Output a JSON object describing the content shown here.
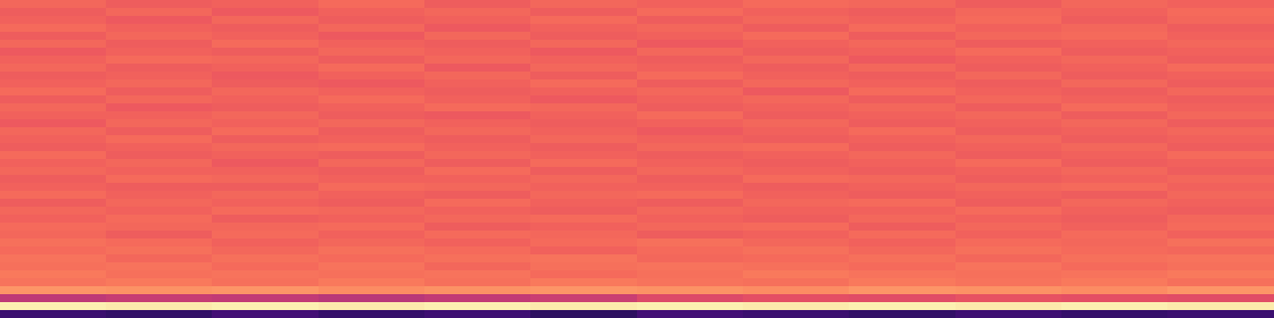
{
  "chart_data": {
    "type": "heatmap",
    "color": "magma",
    "color_range": [
      0,
      1
    ],
    "tick_labels": false,
    "cells": [
      [
        0.68,
        0.66,
        0.67,
        0.69,
        0.66,
        0.68,
        0.67,
        0.69,
        0.68,
        0.66,
        0.68,
        0.67
      ],
      [
        0.66,
        0.68,
        0.65,
        0.67,
        0.68,
        0.66,
        0.69,
        0.67,
        0.66,
        0.68,
        0.67,
        0.69
      ],
      [
        0.67,
        0.65,
        0.68,
        0.66,
        0.67,
        0.69,
        0.66,
        0.68,
        0.67,
        0.69,
        0.66,
        0.68
      ],
      [
        0.69,
        0.67,
        0.66,
        0.68,
        0.65,
        0.67,
        0.68,
        0.66,
        0.69,
        0.67,
        0.68,
        0.66
      ],
      [
        0.66,
        0.68,
        0.67,
        0.65,
        0.68,
        0.66,
        0.67,
        0.69,
        0.66,
        0.68,
        0.69,
        0.67
      ],
      [
        0.68,
        0.66,
        0.69,
        0.67,
        0.66,
        0.68,
        0.65,
        0.67,
        0.68,
        0.66,
        0.67,
        0.68
      ],
      [
        0.65,
        0.67,
        0.66,
        0.68,
        0.67,
        0.65,
        0.68,
        0.66,
        0.67,
        0.69,
        0.66,
        0.67
      ],
      [
        0.67,
        0.69,
        0.68,
        0.66,
        0.68,
        0.67,
        0.66,
        0.68,
        0.65,
        0.67,
        0.68,
        0.66
      ],
      [
        0.68,
        0.66,
        0.67,
        0.69,
        0.65,
        0.68,
        0.67,
        0.66,
        0.68,
        0.66,
        0.67,
        0.69
      ],
      [
        0.66,
        0.67,
        0.65,
        0.67,
        0.68,
        0.66,
        0.69,
        0.67,
        0.66,
        0.68,
        0.66,
        0.67
      ],
      [
        0.67,
        0.68,
        0.66,
        0.65,
        0.67,
        0.69,
        0.66,
        0.68,
        0.67,
        0.66,
        0.68,
        0.66
      ],
      [
        0.69,
        0.66,
        0.68,
        0.67,
        0.66,
        0.67,
        0.68,
        0.65,
        0.69,
        0.67,
        0.66,
        0.68
      ],
      [
        0.66,
        0.68,
        0.67,
        0.69,
        0.67,
        0.65,
        0.67,
        0.68,
        0.66,
        0.68,
        0.67,
        0.66
      ],
      [
        0.68,
        0.65,
        0.66,
        0.67,
        0.69,
        0.68,
        0.66,
        0.67,
        0.68,
        0.66,
        0.69,
        0.67
      ],
      [
        0.67,
        0.67,
        0.68,
        0.66,
        0.65,
        0.67,
        0.69,
        0.66,
        0.67,
        0.68,
        0.66,
        0.68
      ],
      [
        0.65,
        0.68,
        0.67,
        0.68,
        0.67,
        0.66,
        0.67,
        0.68,
        0.66,
        0.67,
        0.68,
        0.66
      ],
      [
        0.68,
        0.66,
        0.69,
        0.66,
        0.68,
        0.67,
        0.65,
        0.67,
        0.69,
        0.66,
        0.67,
        0.68
      ],
      [
        0.67,
        0.69,
        0.66,
        0.67,
        0.66,
        0.68,
        0.67,
        0.66,
        0.67,
        0.68,
        0.66,
        0.67
      ],
      [
        0.66,
        0.67,
        0.68,
        0.69,
        0.67,
        0.66,
        0.68,
        0.69,
        0.66,
        0.67,
        0.68,
        0.66
      ],
      [
        0.69,
        0.66,
        0.67,
        0.66,
        0.68,
        0.67,
        0.66,
        0.67,
        0.68,
        0.66,
        0.67,
        0.69
      ],
      [
        0.67,
        0.68,
        0.65,
        0.68,
        0.66,
        0.69,
        0.67,
        0.66,
        0.67,
        0.69,
        0.66,
        0.67
      ],
      [
        0.68,
        0.67,
        0.67,
        0.66,
        0.69,
        0.66,
        0.68,
        0.67,
        0.66,
        0.67,
        0.68,
        0.66
      ],
      [
        0.66,
        0.69,
        0.68,
        0.67,
        0.67,
        0.68,
        0.66,
        0.69,
        0.68,
        0.66,
        0.67,
        0.68
      ],
      [
        0.67,
        0.66,
        0.66,
        0.69,
        0.68,
        0.67,
        0.67,
        0.66,
        0.67,
        0.68,
        0.69,
        0.67
      ],
      [
        0.69,
        0.67,
        0.68,
        0.67,
        0.66,
        0.68,
        0.69,
        0.67,
        0.66,
        0.67,
        0.66,
        0.68
      ],
      [
        0.66,
        0.68,
        0.67,
        0.66,
        0.69,
        0.67,
        0.66,
        0.68,
        0.69,
        0.66,
        0.68,
        0.67
      ],
      [
        0.68,
        0.67,
        0.69,
        0.68,
        0.67,
        0.66,
        0.68,
        0.67,
        0.67,
        0.69,
        0.67,
        0.66
      ],
      [
        0.67,
        0.69,
        0.66,
        0.67,
        0.68,
        0.69,
        0.67,
        0.66,
        0.68,
        0.67,
        0.66,
        0.68
      ],
      [
        0.69,
        0.68,
        0.68,
        0.69,
        0.66,
        0.67,
        0.68,
        0.69,
        0.66,
        0.68,
        0.67,
        0.69
      ],
      [
        0.68,
        0.66,
        0.69,
        0.67,
        0.69,
        0.68,
        0.66,
        0.67,
        0.69,
        0.67,
        0.69,
        0.67
      ],
      [
        0.7,
        0.69,
        0.67,
        0.68,
        0.67,
        0.69,
        0.7,
        0.68,
        0.67,
        0.69,
        0.68,
        0.7
      ],
      [
        0.69,
        0.7,
        0.68,
        0.7,
        0.69,
        0.67,
        0.69,
        0.7,
        0.68,
        0.7,
        0.69,
        0.68
      ],
      [
        0.71,
        0.68,
        0.7,
        0.69,
        0.7,
        0.71,
        0.68,
        0.69,
        0.7,
        0.68,
        0.7,
        0.71
      ],
      [
        0.7,
        0.71,
        0.69,
        0.71,
        0.68,
        0.7,
        0.71,
        0.7,
        0.69,
        0.71,
        0.69,
        0.7
      ],
      [
        0.72,
        0.7,
        0.71,
        0.7,
        0.71,
        0.69,
        0.7,
        0.72,
        0.71,
        0.7,
        0.71,
        0.72
      ],
      [
        0.71,
        0.72,
        0.7,
        0.72,
        0.7,
        0.72,
        0.71,
        0.7,
        0.72,
        0.71,
        0.72,
        0.7
      ],
      [
        0.78,
        0.77,
        0.78,
        0.76,
        0.77,
        0.78,
        0.77,
        0.76,
        0.78,
        0.77,
        0.76,
        0.78
      ],
      [
        0.52,
        0.54,
        0.53,
        0.51,
        0.53,
        0.55,
        0.6,
        0.62,
        0.61,
        0.63,
        0.62,
        0.61
      ],
      [
        0.97,
        0.96,
        0.97,
        0.96,
        0.97,
        0.96,
        0.97,
        0.96,
        0.97,
        0.96,
        0.97,
        0.96
      ],
      [
        0.2,
        0.18,
        0.22,
        0.19,
        0.21,
        0.17,
        0.22,
        0.2,
        0.18,
        0.21,
        0.19,
        0.2
      ]
    ]
  }
}
